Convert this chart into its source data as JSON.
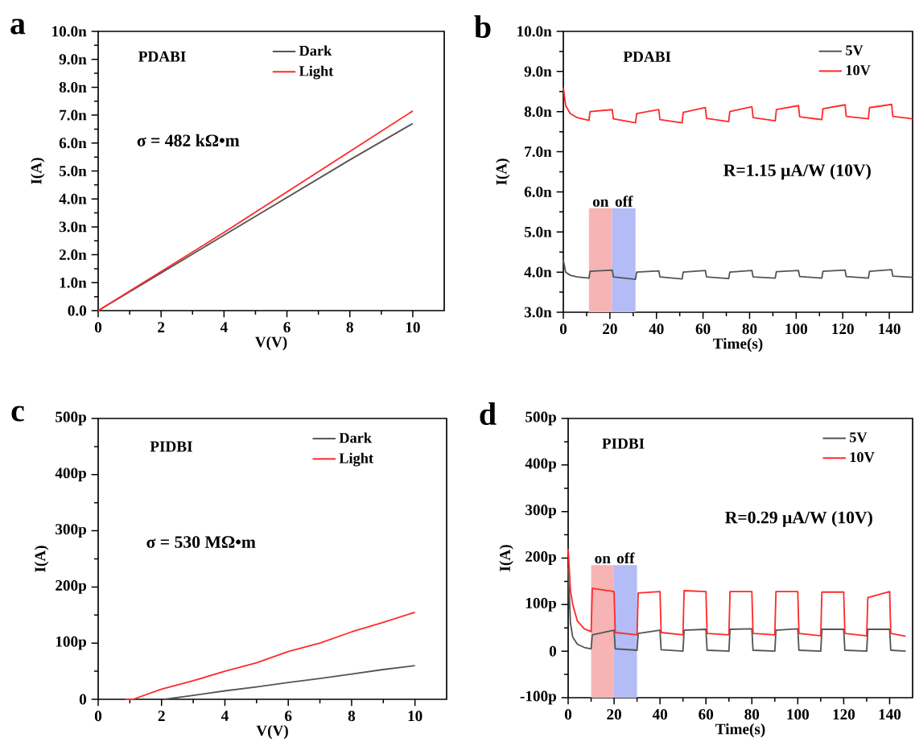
{
  "chart_data": [
    {
      "type": "line",
      "title": "a",
      "xlabel": "V(V)",
      "ylabel": "I(A)",
      "annotations": [
        "PDABI",
        "σ = 482 kΩ•m"
      ],
      "xlim": [
        0,
        11
      ],
      "xticks": [
        0,
        2,
        4,
        6,
        8,
        10
      ],
      "ylim": [
        0,
        10
      ],
      "yticks": [
        {
          "value": 0,
          "label": "0.0"
        },
        {
          "value": 1,
          "label": "1.0n"
        },
        {
          "value": 2,
          "label": "2.0n"
        },
        {
          "value": 3,
          "label": "3.0n"
        },
        {
          "value": 4,
          "label": "4.0n"
        },
        {
          "value": 5,
          "label": "5.0n"
        },
        {
          "value": 6,
          "label": "6.0n"
        },
        {
          "value": 7,
          "label": "7.0n"
        },
        {
          "value": 8,
          "label": "8.0n"
        },
        {
          "value": 9,
          "label": "9.0n"
        },
        {
          "value": 10,
          "label": "10.0n"
        }
      ],
      "legend": "top right",
      "series": [
        {
          "name": "Dark",
          "color": "#555555",
          "x": [
            0,
            2,
            4,
            6,
            8,
            10
          ],
          "values": [
            0,
            1.35,
            2.7,
            4.05,
            5.4,
            6.7
          ]
        },
        {
          "name": "Light",
          "color": "#ff2a2a",
          "x": [
            0,
            2,
            4,
            6,
            8,
            10
          ],
          "values": [
            0,
            1.4,
            2.8,
            4.25,
            5.7,
            7.15
          ]
        }
      ]
    },
    {
      "type": "line",
      "title": "b",
      "xlabel": "Time(s)",
      "ylabel": "I(A)",
      "annotations": [
        "PDABI",
        "R=1.15  μA/W (10V)"
      ],
      "xlim": [
        0,
        150
      ],
      "xticks": [
        0,
        20,
        40,
        60,
        80,
        100,
        120,
        140
      ],
      "ylim": [
        3,
        10
      ],
      "yticks": [
        {
          "value": 3,
          "label": "3.0n"
        },
        {
          "value": 4,
          "label": "4.0n"
        },
        {
          "value": 5,
          "label": "5.0n"
        },
        {
          "value": 6,
          "label": "6.0n"
        },
        {
          "value": 7,
          "label": "7.0n"
        },
        {
          "value": 8,
          "label": "8.0n"
        },
        {
          "value": 9,
          "label": "9.0n"
        },
        {
          "value": 10,
          "label": "10.0n"
        }
      ],
      "legend": "top right",
      "bands": [
        {
          "axis": "x",
          "from": 11,
          "to": 21,
          "label": "on",
          "color": "#f7b4b4"
        },
        {
          "axis": "x",
          "from": 21,
          "to": 31,
          "label": "off",
          "color": "#b4bcf7"
        }
      ],
      "series": [
        {
          "name": "5V",
          "color": "#555555",
          "x": [
            0,
            1,
            3,
            6,
            11,
            11.5,
            21,
            21.5,
            31,
            31.5,
            41,
            41.5,
            51,
            51.5,
            61,
            61.5,
            71,
            71.5,
            81,
            81.5,
            91,
            91.5,
            101,
            101.5,
            111,
            111.5,
            121,
            121.5,
            131,
            131.5,
            141,
            141.5,
            150
          ],
          "values": [
            4.3,
            4.0,
            3.92,
            3.88,
            3.85,
            4.02,
            4.05,
            3.88,
            3.82,
            4.0,
            4.03,
            3.88,
            3.83,
            4.0,
            4.04,
            3.88,
            3.84,
            4.0,
            4.04,
            3.88,
            3.85,
            4.01,
            4.04,
            3.89,
            3.85,
            4.02,
            4.05,
            3.89,
            3.85,
            4.02,
            4.06,
            3.9,
            3.87
          ]
        },
        {
          "name": "10V",
          "color": "#ff2a2a",
          "x": [
            0,
            1,
            3,
            6,
            11,
            11.5,
            21,
            21.5,
            31,
            31.5,
            41,
            41.5,
            51,
            51.5,
            61,
            61.5,
            71,
            71.5,
            81,
            81.5,
            91,
            91.5,
            101,
            101.5,
            111,
            111.5,
            121,
            121.5,
            131,
            131.5,
            141,
            141.5,
            150
          ],
          "values": [
            8.6,
            8.15,
            7.95,
            7.85,
            7.78,
            8.0,
            8.05,
            7.82,
            7.72,
            7.95,
            8.05,
            7.8,
            7.72,
            7.98,
            8.1,
            7.83,
            7.75,
            8.0,
            8.12,
            7.85,
            7.77,
            8.05,
            8.15,
            7.87,
            7.8,
            8.07,
            8.17,
            7.88,
            7.82,
            8.1,
            8.18,
            7.88,
            7.82
          ]
        }
      ]
    },
    {
      "type": "line",
      "title": "c",
      "xlabel": "V(V)",
      "ylabel": "I(A)",
      "annotations": [
        "PIDBI",
        "σ = 530 MΩ•m"
      ],
      "xlim": [
        0,
        11
      ],
      "xticks": [
        0,
        2,
        4,
        6,
        8,
        10
      ],
      "ylim": [
        0,
        500
      ],
      "yticks": [
        0,
        {
          "value": 100,
          "label": "100p"
        },
        {
          "value": 200,
          "label": "200p"
        },
        {
          "value": 300,
          "label": "300p"
        },
        {
          "value": 400,
          "label": "400p"
        },
        {
          "value": 500,
          "label": "500p"
        }
      ],
      "legend": "top right",
      "series": [
        {
          "name": "Dark",
          "color": "#555555",
          "x": [
            2.1,
            3,
            4,
            5,
            6,
            7,
            8,
            9,
            10
          ],
          "values": [
            0,
            7,
            15,
            22,
            30,
            37,
            45,
            53,
            60
          ]
        },
        {
          "name": "Light",
          "color": "#ff2a2a",
          "x": [
            0.85,
            1.1,
            2,
            3,
            4,
            5,
            6,
            7,
            8,
            9,
            10
          ],
          "values": [
            0,
            0,
            18,
            33,
            50,
            65,
            85,
            100,
            120,
            137,
            155
          ]
        }
      ]
    },
    {
      "type": "line",
      "title": "d",
      "xlabel": "Time(s)",
      "ylabel": "I(A)",
      "annotations": [
        "PIDBI",
        "R=0.29 μA/W (10V)"
      ],
      "xlim": [
        0,
        150
      ],
      "xticks": [
        0,
        20,
        40,
        60,
        80,
        100,
        120,
        140
      ],
      "ylim": [
        -100,
        500
      ],
      "yticks": [
        {
          "value": -100,
          "label": "-100p"
        },
        0,
        {
          "value": 100,
          "label": "100p"
        },
        {
          "value": 200,
          "label": "200p"
        },
        {
          "value": 300,
          "label": "300p"
        },
        {
          "value": 400,
          "label": "400p"
        },
        {
          "value": 500,
          "label": "500p"
        }
      ],
      "legend": "top right",
      "bands": [
        {
          "axis": "x",
          "from": 10,
          "to": 20,
          "label": "on",
          "color": "#f7b4b4"
        },
        {
          "axis": "x",
          "from": 20,
          "to": 30,
          "label": "off",
          "color": "#b4bcf7"
        }
      ],
      "series": [
        {
          "name": "5V",
          "color": "#555555",
          "x": [
            0,
            1,
            2,
            4,
            7,
            10,
            10.5,
            20,
            20.5,
            30,
            30.5,
            40,
            40.5,
            50,
            50.5,
            60,
            60.5,
            70,
            70.5,
            80,
            80.5,
            90,
            90.5,
            100,
            100.5,
            110,
            110.5,
            120,
            120.5,
            130,
            130.5,
            140,
            140.5,
            147
          ],
          "values": [
            180,
            60,
            30,
            15,
            8,
            5,
            35,
            45,
            5,
            2,
            38,
            45,
            3,
            0,
            45,
            47,
            2,
            0,
            47,
            48,
            2,
            0,
            45,
            48,
            2,
            0,
            47,
            47,
            2,
            0,
            47,
            47,
            2,
            0
          ]
        },
        {
          "name": "10V",
          "color": "#ff2a2a",
          "x": [
            0,
            1,
            2,
            4,
            7,
            10,
            10.5,
            20,
            20.5,
            30,
            30.5,
            40,
            40.5,
            50,
            50.5,
            60,
            60.5,
            70,
            70.5,
            80,
            80.5,
            90,
            90.5,
            100,
            100.5,
            110,
            110.5,
            120,
            120.5,
            130,
            130.5,
            140,
            140.5,
            147
          ],
          "values": [
            220,
            130,
            100,
            65,
            48,
            42,
            135,
            128,
            40,
            35,
            125,
            128,
            40,
            35,
            130,
            128,
            38,
            35,
            128,
            128,
            38,
            35,
            128,
            128,
            38,
            33,
            127,
            127,
            38,
            33,
            115,
            128,
            38,
            32
          ]
        }
      ]
    }
  ]
}
